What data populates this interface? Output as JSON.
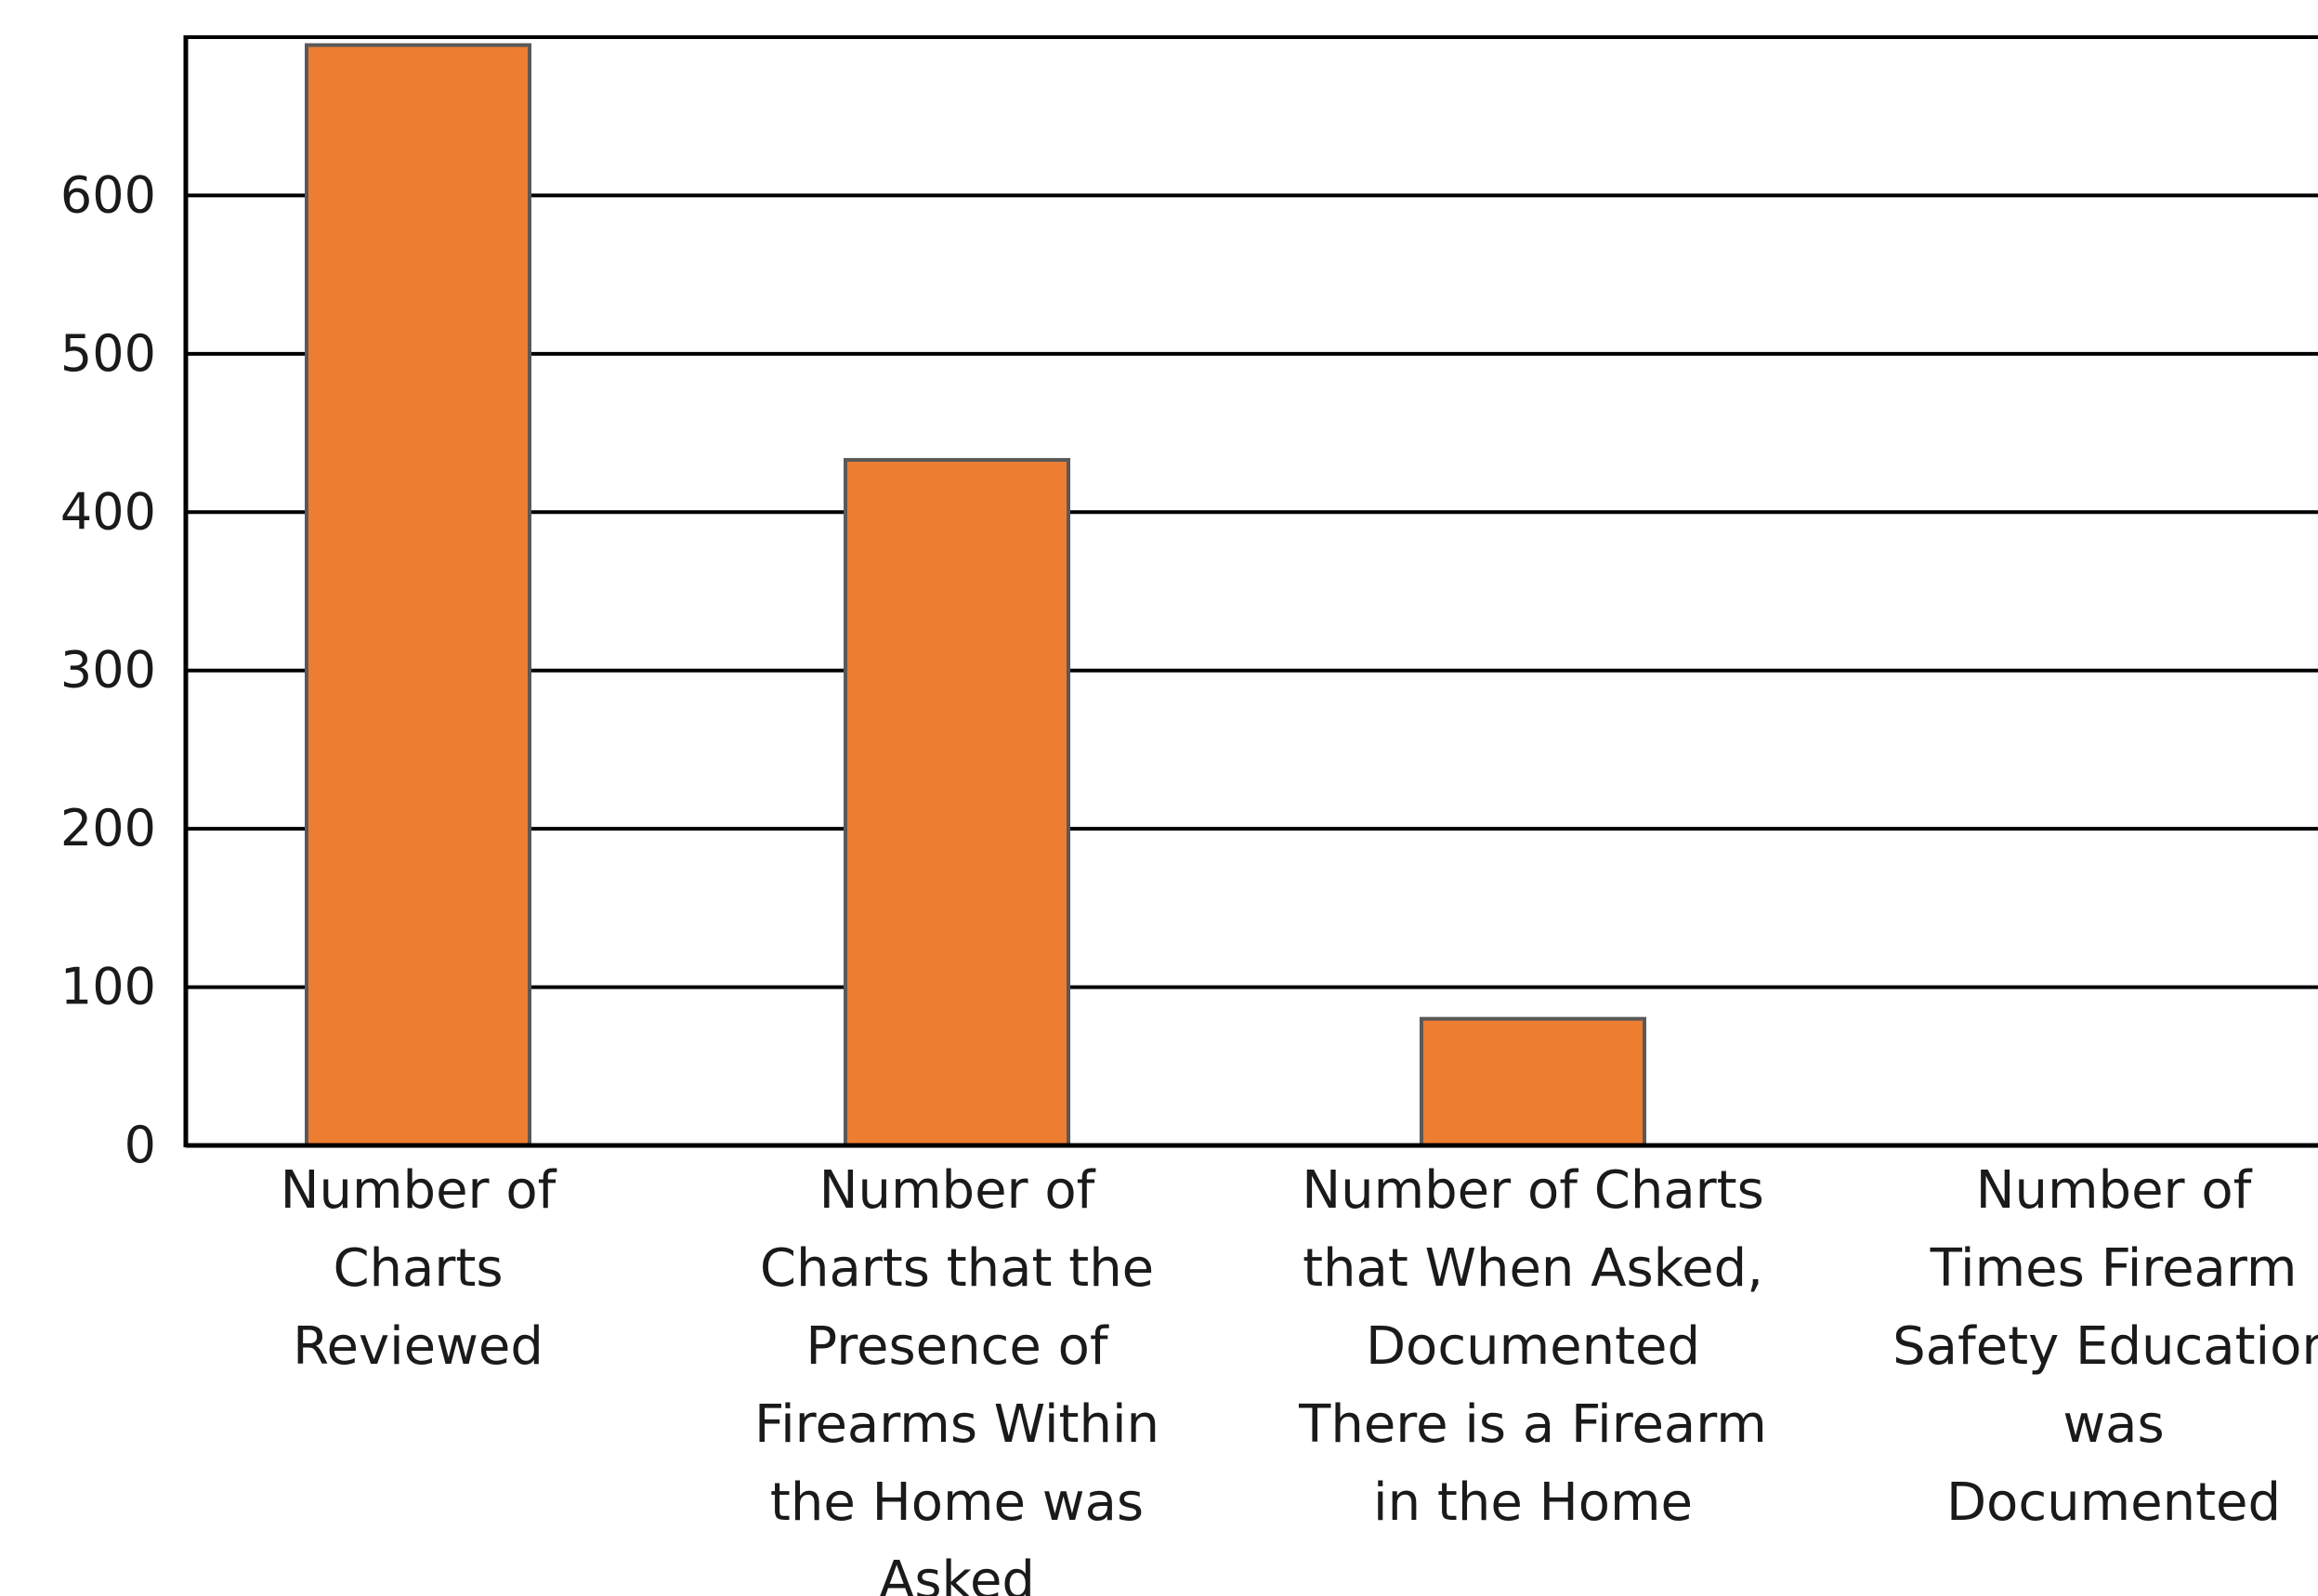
{
  "chart_data": {
    "type": "bar",
    "categories": [
      "Number of Charts Reviewed",
      "Number of Charts that the Presence of Firearms Within the Home was Asked",
      "Number of Charts that When Asked, Documented There is a Firearm in the Home",
      "Number of Times Firearm Safety Education was Documented"
    ],
    "category_lines": [
      [
        "Number of",
        "Charts",
        "Reviewed"
      ],
      [
        "Number of",
        "Charts that the",
        "Presence of",
        "Firearms Within",
        "the Home was",
        "Asked"
      ],
      [
        "Number of Charts",
        "that When Asked,",
        "Documented",
        "There is a Firearm",
        "in the Home"
      ],
      [
        "Number of",
        "Times Firearm",
        "Safety Education",
        "was",
        "Documented"
      ]
    ],
    "values": [
      695,
      433,
      80,
      0
    ],
    "yticks": [
      0,
      100,
      200,
      300,
      400,
      500,
      600
    ],
    "ylim": [
      0,
      700
    ],
    "grid": true,
    "colors": {
      "bar": "#ED7D31",
      "bar_edge": "#595959",
      "axis": "#000000"
    }
  }
}
